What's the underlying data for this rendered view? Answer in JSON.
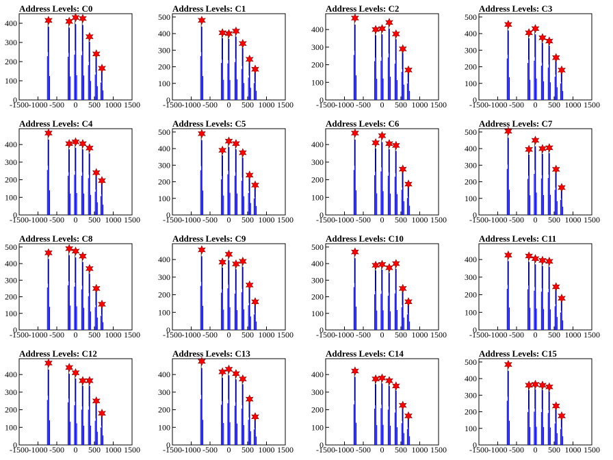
{
  "colors": {
    "histogram": "#0000ff",
    "peak_marker": "#ff0000",
    "background": "#ffffff",
    "axes": "#000000"
  },
  "chart_data": [
    {
      "type": "bar",
      "title": "Address Levels: C0",
      "xlim": [
        -1500,
        1500
      ],
      "ylim": [
        0,
        450
      ],
      "x_ticks": [
        -1500,
        -1000,
        -500,
        0,
        500,
        1000,
        1500
      ],
      "y_ticks": [
        0,
        100,
        200,
        300,
        400
      ],
      "peaks": [
        {
          "x": -720,
          "y": 415
        },
        {
          "x": -170,
          "y": 410
        },
        {
          "x": 0,
          "y": 430
        },
        {
          "x": 190,
          "y": 425
        },
        {
          "x": 370,
          "y": 330
        },
        {
          "x": 550,
          "y": 240
        },
        {
          "x": 700,
          "y": 165
        }
      ]
    },
    {
      "type": "bar",
      "title": "Address Levels: C1",
      "xlim": [
        -1500,
        1500
      ],
      "ylim": [
        0,
        520
      ],
      "x_ticks": [
        -1500,
        -1000,
        -500,
        0,
        500,
        1000,
        1500
      ],
      "y_ticks": [
        0,
        100,
        200,
        300,
        400,
        500
      ],
      "peaks": [
        {
          "x": -720,
          "y": 480
        },
        {
          "x": -170,
          "y": 405
        },
        {
          "x": 0,
          "y": 400
        },
        {
          "x": 190,
          "y": 415
        },
        {
          "x": 370,
          "y": 340
        },
        {
          "x": 550,
          "y": 245
        },
        {
          "x": 700,
          "y": 185
        }
      ]
    },
    {
      "type": "bar",
      "title": "Address Levels: C2",
      "xlim": [
        -1500,
        1500
      ],
      "ylim": [
        0,
        490
      ],
      "x_ticks": [
        -1500,
        -1000,
        -500,
        0,
        500,
        1000,
        1500
      ],
      "y_ticks": [
        0,
        100,
        200,
        300,
        400
      ],
      "peaks": [
        {
          "x": -720,
          "y": 465
        },
        {
          "x": -170,
          "y": 400
        },
        {
          "x": 0,
          "y": 405
        },
        {
          "x": 190,
          "y": 440
        },
        {
          "x": 370,
          "y": 375
        },
        {
          "x": 550,
          "y": 290
        },
        {
          "x": 700,
          "y": 170
        }
      ]
    },
    {
      "type": "bar",
      "title": "Address Levels: C3",
      "xlim": [
        -1500,
        1500
      ],
      "ylim": [
        0,
        520
      ],
      "x_ticks": [
        -1500,
        -1000,
        -500,
        0,
        500,
        1000,
        1500
      ],
      "y_ticks": [
        0,
        100,
        200,
        300,
        400,
        500
      ],
      "peaks": [
        {
          "x": -720,
          "y": 455
        },
        {
          "x": -170,
          "y": 405
        },
        {
          "x": 0,
          "y": 430
        },
        {
          "x": 190,
          "y": 375
        },
        {
          "x": 370,
          "y": 355
        },
        {
          "x": 550,
          "y": 255
        },
        {
          "x": 700,
          "y": 180
        }
      ]
    },
    {
      "type": "bar",
      "title": "Address Levels: C4",
      "xlim": [
        -1500,
        1500
      ],
      "ylim": [
        0,
        490
      ],
      "x_ticks": [
        -1500,
        -1000,
        -500,
        0,
        500,
        1000,
        1500
      ],
      "y_ticks": [
        0,
        100,
        200,
        300,
        400
      ],
      "peaks": [
        {
          "x": -720,
          "y": 465
        },
        {
          "x": -170,
          "y": 405
        },
        {
          "x": 0,
          "y": 415
        },
        {
          "x": 190,
          "y": 405
        },
        {
          "x": 370,
          "y": 380
        },
        {
          "x": 550,
          "y": 240
        },
        {
          "x": 700,
          "y": 195
        }
      ]
    },
    {
      "type": "bar",
      "title": "Address Levels: C5",
      "xlim": [
        -1500,
        1500
      ],
      "ylim": [
        0,
        520
      ],
      "x_ticks": [
        -1500,
        -1000,
        -500,
        0,
        500,
        1000,
        1500
      ],
      "y_ticks": [
        0,
        100,
        200,
        300,
        400,
        500
      ],
      "peaks": [
        {
          "x": -720,
          "y": 490
        },
        {
          "x": -170,
          "y": 390
        },
        {
          "x": 0,
          "y": 445
        },
        {
          "x": 190,
          "y": 430
        },
        {
          "x": 370,
          "y": 375
        },
        {
          "x": 550,
          "y": 240
        },
        {
          "x": 700,
          "y": 180
        }
      ]
    },
    {
      "type": "bar",
      "title": "Address Levels: C6",
      "xlim": [
        -1500,
        1500
      ],
      "ylim": [
        0,
        490
      ],
      "x_ticks": [
        -1500,
        -1000,
        -500,
        0,
        500,
        1000,
        1500
      ],
      "y_ticks": [
        0,
        100,
        200,
        300,
        400
      ],
      "peaks": [
        {
          "x": -720,
          "y": 465
        },
        {
          "x": -170,
          "y": 410
        },
        {
          "x": 0,
          "y": 450
        },
        {
          "x": 190,
          "y": 405
        },
        {
          "x": 370,
          "y": 395
        },
        {
          "x": 550,
          "y": 260
        },
        {
          "x": 700,
          "y": 175
        }
      ]
    },
    {
      "type": "bar",
      "title": "Address Levels: C7",
      "xlim": [
        -1500,
        1500
      ],
      "ylim": [
        0,
        520
      ],
      "x_ticks": [
        -1500,
        -1000,
        -500,
        0,
        500,
        1000,
        1500
      ],
      "y_ticks": [
        0,
        100,
        200,
        300,
        400,
        500
      ],
      "peaks": [
        {
          "x": -720,
          "y": 505
        },
        {
          "x": -170,
          "y": 395
        },
        {
          "x": 0,
          "y": 450
        },
        {
          "x": 190,
          "y": 400
        },
        {
          "x": 370,
          "y": 405
        },
        {
          "x": 550,
          "y": 275
        },
        {
          "x": 700,
          "y": 165
        }
      ]
    },
    {
      "type": "bar",
      "title": "Address Levels: C8",
      "xlim": [
        -1500,
        1500
      ],
      "ylim": [
        0,
        520
      ],
      "x_ticks": [
        -1500,
        -1000,
        -500,
        0,
        500,
        1000,
        1500
      ],
      "y_ticks": [
        0,
        100,
        200,
        300,
        400,
        500
      ],
      "peaks": [
        {
          "x": -720,
          "y": 465
        },
        {
          "x": -170,
          "y": 490
        },
        {
          "x": 0,
          "y": 475
        },
        {
          "x": 190,
          "y": 445
        },
        {
          "x": 370,
          "y": 370
        },
        {
          "x": 550,
          "y": 250
        },
        {
          "x": 700,
          "y": 155
        }
      ]
    },
    {
      "type": "bar",
      "title": "Address Levels: C9",
      "xlim": [
        -1500,
        1500
      ],
      "ylim": [
        0,
        490
      ],
      "x_ticks": [
        -1500,
        -1000,
        -500,
        0,
        500,
        1000,
        1500
      ],
      "y_ticks": [
        0,
        100,
        200,
        300,
        400
      ],
      "peaks": [
        {
          "x": -720,
          "y": 455
        },
        {
          "x": -170,
          "y": 385
        },
        {
          "x": 0,
          "y": 430
        },
        {
          "x": 190,
          "y": 375
        },
        {
          "x": 370,
          "y": 390
        },
        {
          "x": 550,
          "y": 255
        },
        {
          "x": 700,
          "y": 160
        }
      ]
    },
    {
      "type": "bar",
      "title": "Address Levels: C10",
      "xlim": [
        -1500,
        1500
      ],
      "ylim": [
        0,
        520
      ],
      "x_ticks": [
        -1500,
        -1000,
        -500,
        0,
        500,
        1000,
        1500
      ],
      "y_ticks": [
        0,
        100,
        200,
        300,
        400,
        500
      ],
      "peaks": [
        {
          "x": -720,
          "y": 470
        },
        {
          "x": -170,
          "y": 390
        },
        {
          "x": 0,
          "y": 395
        },
        {
          "x": 190,
          "y": 375
        },
        {
          "x": 370,
          "y": 400
        },
        {
          "x": 550,
          "y": 250
        },
        {
          "x": 700,
          "y": 170
        }
      ]
    },
    {
      "type": "bar",
      "title": "Address Levels: C11",
      "xlim": [
        -1500,
        1500
      ],
      "ylim": [
        0,
        490
      ],
      "x_ticks": [
        -1500,
        -1000,
        -500,
        0,
        500,
        1000,
        1500
      ],
      "y_ticks": [
        0,
        100,
        200,
        300,
        400
      ],
      "peaks": [
        {
          "x": -720,
          "y": 425
        },
        {
          "x": -170,
          "y": 420
        },
        {
          "x": 0,
          "y": 405
        },
        {
          "x": 190,
          "y": 395
        },
        {
          "x": 370,
          "y": 390
        },
        {
          "x": 550,
          "y": 245
        },
        {
          "x": 700,
          "y": 180
        }
      ]
    },
    {
      "type": "bar",
      "title": "Address Levels: C12",
      "xlim": [
        -1500,
        1500
      ],
      "ylim": [
        0,
        490
      ],
      "x_ticks": [
        -1500,
        -1000,
        -500,
        0,
        500,
        1000,
        1500
      ],
      "y_ticks": [
        0,
        100,
        200,
        300,
        400
      ],
      "peaks": [
        {
          "x": -720,
          "y": 465
        },
        {
          "x": -170,
          "y": 440
        },
        {
          "x": 0,
          "y": 410
        },
        {
          "x": 190,
          "y": 365
        },
        {
          "x": 370,
          "y": 365
        },
        {
          "x": 550,
          "y": 250
        },
        {
          "x": 700,
          "y": 180
        }
      ]
    },
    {
      "type": "bar",
      "title": "Address Levels: C13",
      "xlim": [
        -1500,
        1500
      ],
      "ylim": [
        0,
        490
      ],
      "x_ticks": [
        -1500,
        -1000,
        -500,
        0,
        500,
        1000,
        1500
      ],
      "y_ticks": [
        0,
        100,
        200,
        300,
        400
      ],
      "peaks": [
        {
          "x": -720,
          "y": 475
        },
        {
          "x": -170,
          "y": 415
        },
        {
          "x": 0,
          "y": 430
        },
        {
          "x": 190,
          "y": 405
        },
        {
          "x": 370,
          "y": 375
        },
        {
          "x": 550,
          "y": 260
        },
        {
          "x": 700,
          "y": 160
        }
      ]
    },
    {
      "type": "bar",
      "title": "Address Levels: C14",
      "xlim": [
        -1500,
        1500
      ],
      "ylim": [
        0,
        490
      ],
      "x_ticks": [
        -1500,
        -1000,
        -500,
        0,
        500,
        1000,
        1500
      ],
      "y_ticks": [
        0,
        100,
        200,
        300,
        400
      ],
      "peaks": [
        {
          "x": -720,
          "y": 420
        },
        {
          "x": -170,
          "y": 375
        },
        {
          "x": 0,
          "y": 380
        },
        {
          "x": 190,
          "y": 365
        },
        {
          "x": 370,
          "y": 335
        },
        {
          "x": 550,
          "y": 225
        },
        {
          "x": 700,
          "y": 165
        }
      ]
    },
    {
      "type": "bar",
      "title": "Address Levels: C15",
      "xlim": [
        -1500,
        1500
      ],
      "ylim": [
        0,
        520
      ],
      "x_ticks": [
        -1500,
        -1000,
        -500,
        0,
        500,
        1000,
        1500
      ],
      "y_ticks": [
        0,
        100,
        200,
        300,
        400,
        500
      ],
      "peaks": [
        {
          "x": -720,
          "y": 485
        },
        {
          "x": -170,
          "y": 360
        },
        {
          "x": 0,
          "y": 365
        },
        {
          "x": 190,
          "y": 360
        },
        {
          "x": 370,
          "y": 350
        },
        {
          "x": 550,
          "y": 235
        },
        {
          "x": 700,
          "y": 175
        }
      ]
    }
  ]
}
